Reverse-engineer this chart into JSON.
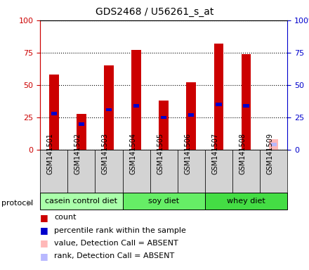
{
  "title": "GDS2468 / U56261_s_at",
  "samples": [
    "GSM141501",
    "GSM141502",
    "GSM141503",
    "GSM141504",
    "GSM141505",
    "GSM141506",
    "GSM141507",
    "GSM141508",
    "GSM141509"
  ],
  "count_values": [
    58,
    28,
    65,
    77,
    38,
    52,
    82,
    74,
    null
  ],
  "rank_values": [
    28,
    20,
    31,
    34,
    25,
    27,
    35,
    34,
    null
  ],
  "absent_count": [
    null,
    null,
    null,
    null,
    null,
    null,
    null,
    null,
    8
  ],
  "absent_rank": [
    null,
    null,
    null,
    null,
    null,
    null,
    null,
    null,
    4
  ],
  "bar_color_red": "#cc0000",
  "bar_color_blue": "#0000cc",
  "bar_color_absent_red": "#ffb8b8",
  "bar_color_absent_blue": "#b8b8ff",
  "protocol_groups": [
    {
      "label": "casein control diet",
      "start": 0,
      "end": 3,
      "color": "#aaffaa"
    },
    {
      "label": "soy diet",
      "start": 3,
      "end": 6,
      "color": "#66ee66"
    },
    {
      "label": "whey diet",
      "start": 6,
      "end": 9,
      "color": "#44dd44"
    }
  ],
  "ylim": [
    0,
    100
  ],
  "yticks": [
    0,
    25,
    50,
    75,
    100
  ],
  "ytick_labels_left": [
    "0",
    "25",
    "50",
    "75",
    "100"
  ],
  "ytick_labels_right": [
    "0",
    "25",
    "50",
    "75",
    "100%"
  ],
  "left_axis_color": "#cc0000",
  "right_axis_color": "#0000cc",
  "bar_width": 0.35
}
